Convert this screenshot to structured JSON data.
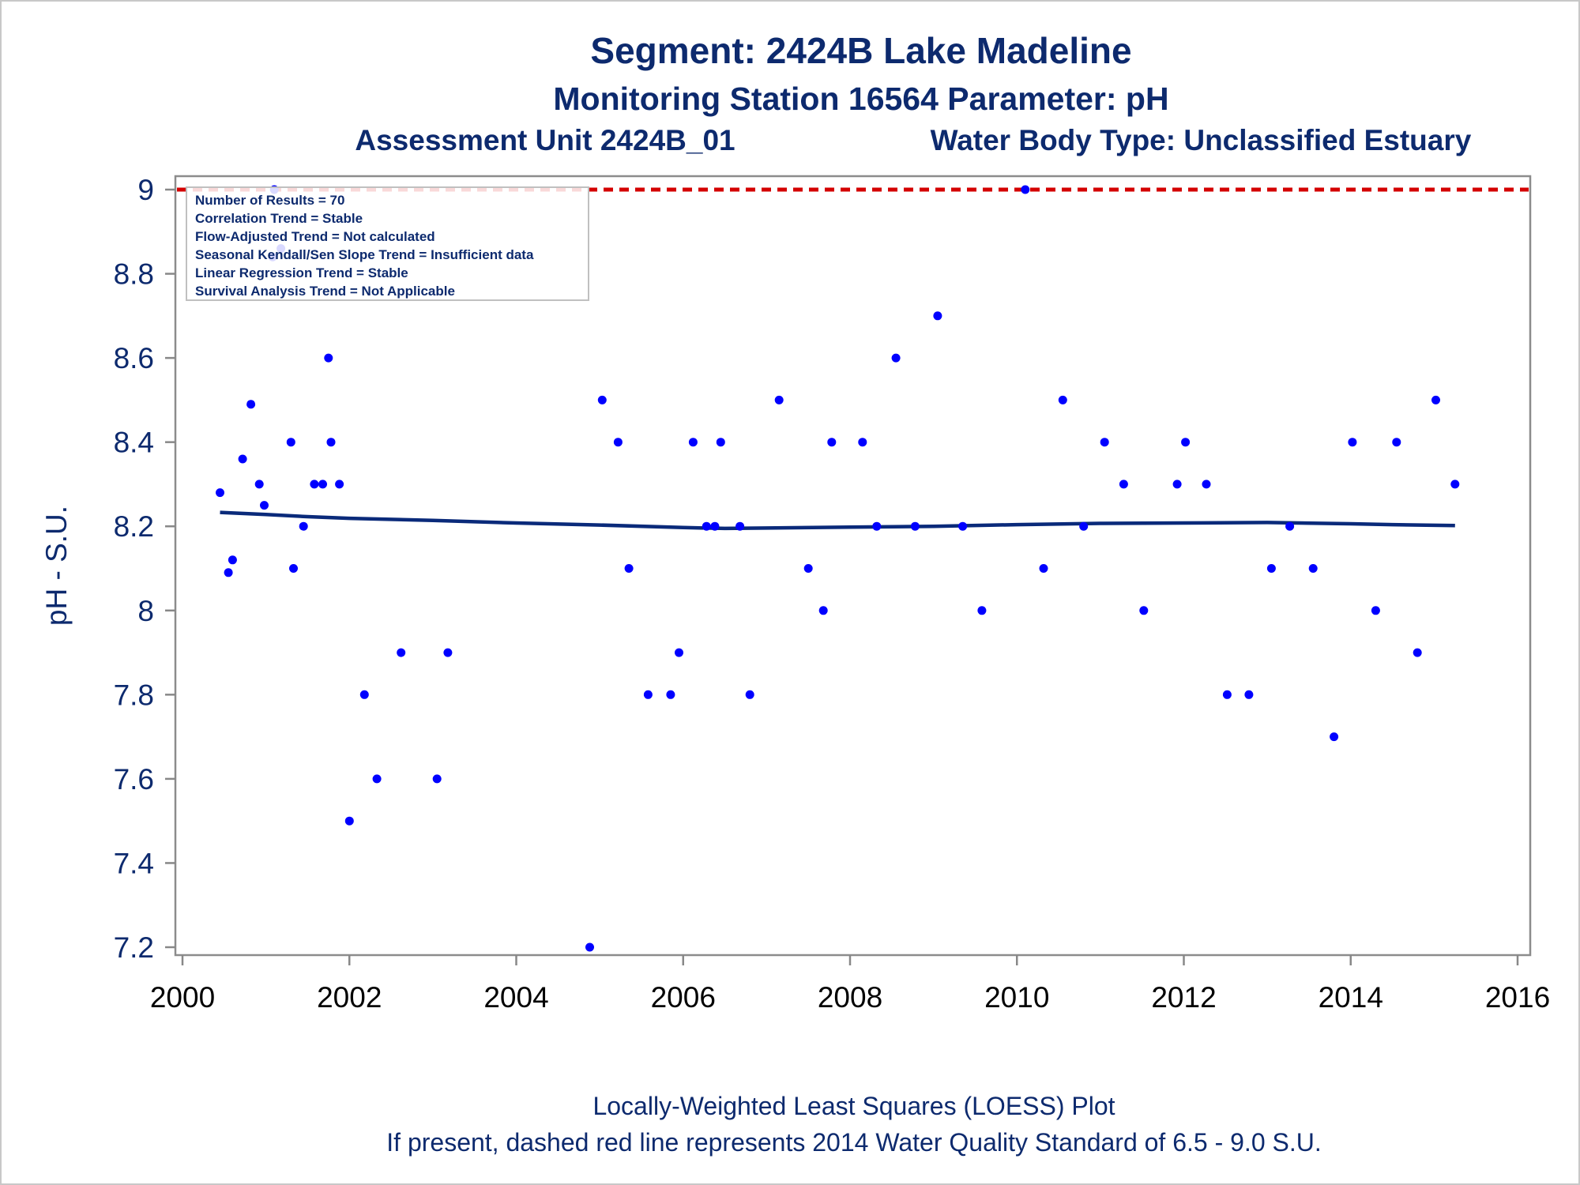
{
  "titles": {
    "line1": "Segment: 2424B  Lake Madeline",
    "line2": "Monitoring Station 16564 Parameter: pH",
    "line3_left": "Assessment Unit 2424B_01",
    "line3_right": "Water Body Type: Unclassified Estuary"
  },
  "footnotes": {
    "line1": "Locally-Weighted Least Squares (LOESS) Plot",
    "line2": "If present, dashed red line represents 2014 Water Quality Standard of 6.5 - 9.0 S.U."
  },
  "info_box": [
    "Number of Results = 70",
    "Correlation Trend = Stable",
    "Flow-Adjusted Trend = Not calculated",
    "Seasonal Kendall/Sen Slope Trend = Insufficient data",
    "Linear Regression Trend = Stable",
    "Survival Analysis Trend = Not Applicable"
  ],
  "colors": {
    "text": "#0d2a6e",
    "points": "#0000ff",
    "loess": "#0a2a7a",
    "standard_line": "#d40000",
    "axis": "#888888"
  },
  "chart_data": {
    "type": "scatter",
    "ylabel": "pH - S.U.",
    "xlabel": "",
    "xlim": [
      2000,
      2016
    ],
    "ylim": [
      7.2,
      9.0
    ],
    "x_ticks": [
      "2000",
      "2002",
      "2004",
      "2006",
      "2008",
      "2010",
      "2012",
      "2014",
      "2016"
    ],
    "y_ticks": [
      "7.2",
      "7.4",
      "7.6",
      "7.8",
      "8",
      "8.2",
      "8.4",
      "8.6",
      "8.8",
      "9"
    ],
    "grid": false,
    "standard_line": {
      "y": 9.0,
      "style": "dashed"
    },
    "series": [
      {
        "type": "scatter",
        "points": [
          [
            2000.45,
            8.28
          ],
          [
            2000.55,
            8.09
          ],
          [
            2000.6,
            8.12
          ],
          [
            2000.72,
            8.36
          ],
          [
            2000.82,
            8.49
          ],
          [
            2000.92,
            8.3
          ],
          [
            2000.98,
            8.25
          ],
          [
            2001.08,
            8.84
          ],
          [
            2001.1,
            9.0
          ],
          [
            2001.18,
            8.86
          ],
          [
            2001.3,
            8.4
          ],
          [
            2001.33,
            8.1
          ],
          [
            2001.45,
            8.2
          ],
          [
            2001.58,
            8.3
          ],
          [
            2001.68,
            8.3
          ],
          [
            2001.75,
            8.6
          ],
          [
            2001.78,
            8.4
          ],
          [
            2001.88,
            8.3
          ],
          [
            2002.0,
            7.5
          ],
          [
            2002.18,
            7.8
          ],
          [
            2002.33,
            7.6
          ],
          [
            2002.62,
            7.9
          ],
          [
            2003.05,
            7.6
          ],
          [
            2003.18,
            7.9
          ],
          [
            2004.88,
            7.2
          ],
          [
            2005.03,
            8.5
          ],
          [
            2005.22,
            8.4
          ],
          [
            2005.35,
            8.1
          ],
          [
            2005.58,
            7.8
          ],
          [
            2005.85,
            7.8
          ],
          [
            2005.95,
            7.9
          ],
          [
            2006.12,
            8.4
          ],
          [
            2006.28,
            8.2
          ],
          [
            2006.38,
            8.2
          ],
          [
            2006.45,
            8.4
          ],
          [
            2006.68,
            8.2
          ],
          [
            2006.8,
            7.8
          ],
          [
            2007.15,
            8.5
          ],
          [
            2007.5,
            8.1
          ],
          [
            2007.68,
            8.0
          ],
          [
            2007.78,
            8.4
          ],
          [
            2008.15,
            8.4
          ],
          [
            2008.32,
            8.2
          ],
          [
            2008.55,
            8.6
          ],
          [
            2008.78,
            8.2
          ],
          [
            2009.05,
            8.7
          ],
          [
            2009.35,
            8.2
          ],
          [
            2009.58,
            8.0
          ],
          [
            2010.1,
            9.0
          ],
          [
            2010.32,
            8.1
          ],
          [
            2010.55,
            8.5
          ],
          [
            2010.8,
            8.2
          ],
          [
            2011.05,
            8.4
          ],
          [
            2011.28,
            8.3
          ],
          [
            2011.52,
            8.0
          ],
          [
            2011.92,
            8.3
          ],
          [
            2012.02,
            8.4
          ],
          [
            2012.27,
            8.3
          ],
          [
            2012.52,
            7.8
          ],
          [
            2012.78,
            7.8
          ],
          [
            2013.05,
            8.1
          ],
          [
            2013.27,
            8.2
          ],
          [
            2013.55,
            8.1
          ],
          [
            2013.8,
            7.7
          ],
          [
            2014.02,
            8.4
          ],
          [
            2014.3,
            8.0
          ],
          [
            2014.55,
            8.4
          ],
          [
            2014.8,
            7.9
          ],
          [
            2015.02,
            8.5
          ],
          [
            2015.25,
            8.3
          ]
        ]
      },
      {
        "type": "line",
        "points": [
          [
            2000.45,
            8.233
          ],
          [
            2001.0,
            8.228
          ],
          [
            2001.5,
            8.223
          ],
          [
            2002.0,
            8.219
          ],
          [
            2003.0,
            8.214
          ],
          [
            2004.0,
            8.208
          ],
          [
            2005.0,
            8.203
          ],
          [
            2006.0,
            8.197
          ],
          [
            2006.5,
            8.195
          ],
          [
            2007.0,
            8.196
          ],
          [
            2008.0,
            8.198
          ],
          [
            2009.0,
            8.2
          ],
          [
            2010.0,
            8.204
          ],
          [
            2011.0,
            8.207
          ],
          [
            2012.0,
            8.208
          ],
          [
            2013.0,
            8.209
          ],
          [
            2014.0,
            8.206
          ],
          [
            2014.5,
            8.204
          ],
          [
            2015.25,
            8.202
          ]
        ]
      }
    ]
  }
}
